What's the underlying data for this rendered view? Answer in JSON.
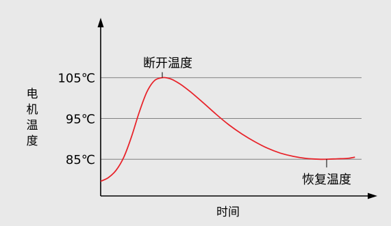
{
  "chart_data": {
    "type": "line",
    "xlabel": "时间",
    "ylabel": "电机温度",
    "yticks": [
      {
        "value": 105,
        "label": "105℃"
      },
      {
        "value": 95,
        "label": "95℃"
      },
      {
        "value": 85,
        "label": "85℃"
      }
    ],
    "ylim": [
      76,
      118
    ],
    "xlim": [
      0,
      10
    ],
    "grid": true,
    "series": [
      {
        "color": "#e8232a",
        "x": [
          0,
          0.3,
          0.6,
          0.9,
          1.2,
          1.5,
          1.8,
          2.1,
          2.4,
          2.6,
          2.8,
          3.1,
          3.5,
          4.0,
          4.5,
          5.0,
          5.5,
          6.0,
          6.5,
          7.0,
          7.5,
          8.0,
          8.5,
          8.8,
          9.2,
          9.6,
          9.9
        ],
        "y": [
          79.6,
          80.5,
          82.3,
          85.5,
          90.5,
          96.5,
          101.5,
          104.3,
          105.0,
          104.9,
          104.5,
          103.4,
          101.5,
          98.8,
          96.0,
          93.4,
          91.2,
          89.3,
          87.7,
          86.5,
          85.7,
          85.2,
          85.0,
          85.0,
          85.1,
          85.2,
          85.5
        ]
      }
    ],
    "annotations": [
      {
        "label": "断开温度",
        "x": 2.4,
        "y": 105.0
      },
      {
        "label": "恢复温度",
        "x": 8.8,
        "y": 85.0
      }
    ]
  },
  "colors": {
    "background": "#e9e9e9",
    "grid": "#808080",
    "axis": "#000000",
    "curve": "#e8232a"
  }
}
